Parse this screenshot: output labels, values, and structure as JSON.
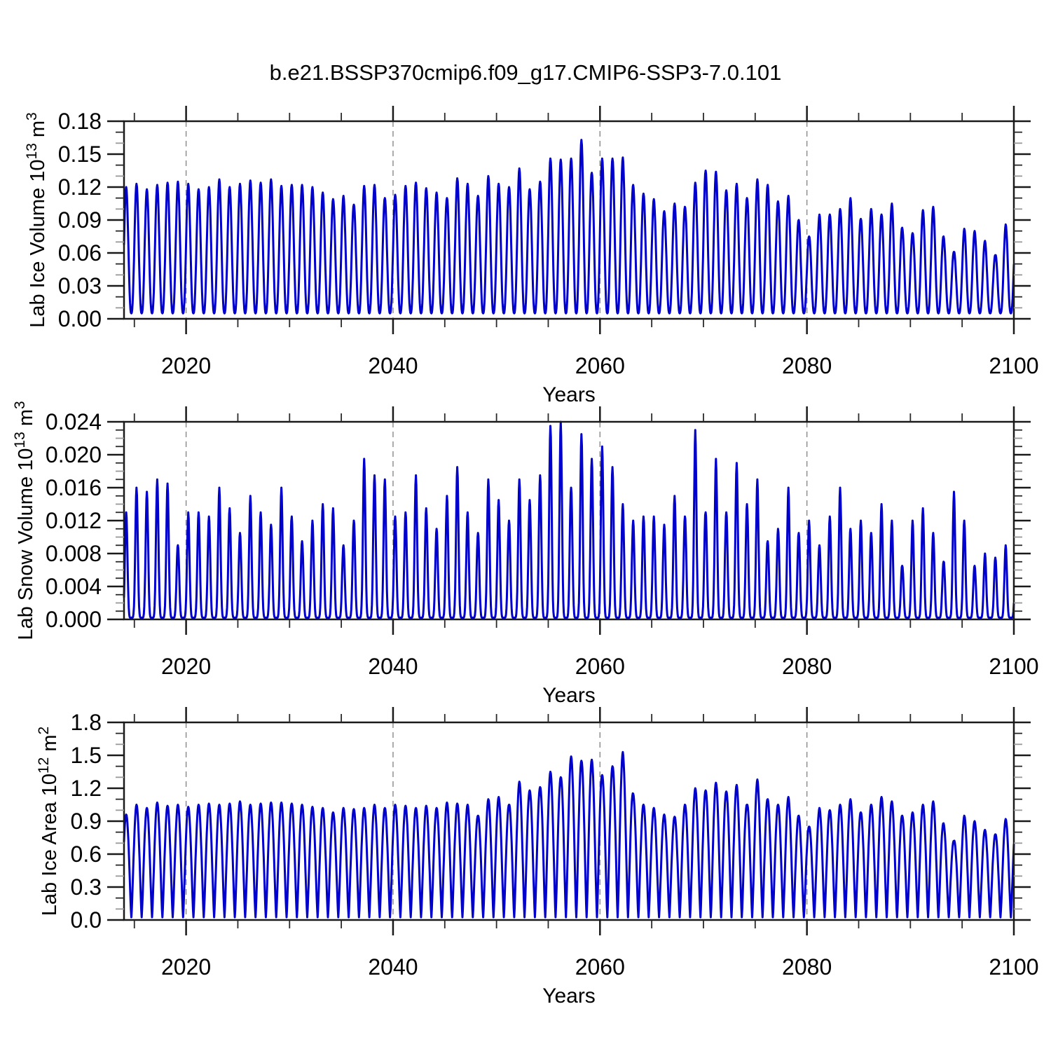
{
  "title": "b.e21.BSSP370cmip6.f09_g17.CMIP6-SSP3-7.0.101",
  "colors": {
    "line": "#0000CD",
    "frame": "#1a1a1a",
    "major_tick": "#1a1a1a",
    "minor_tick_dark": "#2a2a2a",
    "minor_tick_gray": "#999999",
    "grid": "#888888",
    "text": "#000000"
  },
  "chart_data": [
    {
      "type": "line",
      "id": "lab-ice-volume",
      "ylabel": {
        "text": "Lab Ice Volume",
        "base": "10",
        "base_exp": "13",
        "unit": "m",
        "unit_exp": "3"
      },
      "xlabel": "Years",
      "xlim": [
        2014,
        2100
      ],
      "ylim": [
        0,
        0.18
      ],
      "x_major_ticks": [
        2020,
        2040,
        2060,
        2080,
        2100
      ],
      "x_major_labels": [
        "2020",
        "2040",
        "2060",
        "2080",
        "2100"
      ],
      "x_minor_step": 5,
      "y_major_ticks": [
        0,
        0.03,
        0.06,
        0.09,
        0.12,
        0.15,
        0.18
      ],
      "y_major_labels": [
        "0.00",
        "0.03",
        "0.06",
        "0.09",
        "0.12",
        "0.15",
        "0.18"
      ],
      "y_minor_step": 0.01,
      "grid_x": [
        2020,
        2040,
        2060,
        2080
      ],
      "seasonal_min": 0.005,
      "seasonal_exponent": 1.3,
      "peak_month_frac": 0.2083,
      "annual_peak_start_year": 2014,
      "annual_peaks": [
        0.12,
        0.123,
        0.118,
        0.122,
        0.124,
        0.125,
        0.123,
        0.118,
        0.12,
        0.127,
        0.12,
        0.123,
        0.126,
        0.124,
        0.127,
        0.121,
        0.122,
        0.122,
        0.12,
        0.115,
        0.109,
        0.112,
        0.104,
        0.121,
        0.122,
        0.11,
        0.113,
        0.121,
        0.124,
        0.119,
        0.115,
        0.11,
        0.128,
        0.123,
        0.112,
        0.13,
        0.123,
        0.12,
        0.137,
        0.118,
        0.125,
        0.146,
        0.145,
        0.146,
        0.163,
        0.133,
        0.146,
        0.146,
        0.147,
        0.122,
        0.114,
        0.109,
        0.098,
        0.105,
        0.102,
        0.124,
        0.135,
        0.134,
        0.117,
        0.123,
        0.11,
        0.127,
        0.122,
        0.107,
        0.112,
        0.09,
        0.075,
        0.095,
        0.095,
        0.1,
        0.11,
        0.091,
        0.1,
        0.095,
        0.105,
        0.083,
        0.078,
        0.099,
        0.102,
        0.075,
        0.061,
        0.082,
        0.08,
        0.071,
        0.058,
        0.086
      ]
    },
    {
      "type": "line",
      "id": "lab-snow-volume",
      "ylabel": {
        "text": "Lab Snow Volume",
        "base": "10",
        "base_exp": "13",
        "unit": "m",
        "unit_exp": "3"
      },
      "xlabel": "Years",
      "xlim": [
        2014,
        2100
      ],
      "ylim": [
        0,
        0.024
      ],
      "x_major_ticks": [
        2020,
        2040,
        2060,
        2080,
        2100
      ],
      "x_major_labels": [
        "2020",
        "2040",
        "2060",
        "2080",
        "2100"
      ],
      "x_minor_step": 5,
      "y_major_ticks": [
        0,
        0.004,
        0.008,
        0.012,
        0.016,
        0.02,
        0.024
      ],
      "y_major_labels": [
        "0.000",
        "0.004",
        "0.008",
        "0.012",
        "0.016",
        "0.020",
        "0.024"
      ],
      "y_minor_step": 0.001,
      "grid_x": [
        2020,
        2040,
        2060,
        2080
      ],
      "seasonal_min": 0.0002,
      "seasonal_exponent": 3.5,
      "peak_month_frac": 0.2083,
      "annual_peak_start_year": 2014,
      "annual_peaks": [
        0.013,
        0.016,
        0.0155,
        0.017,
        0.0165,
        0.009,
        0.013,
        0.013,
        0.0125,
        0.016,
        0.0135,
        0.0105,
        0.015,
        0.013,
        0.0115,
        0.016,
        0.0125,
        0.0095,
        0.012,
        0.014,
        0.0135,
        0.009,
        0.012,
        0.0195,
        0.0175,
        0.017,
        0.0125,
        0.013,
        0.0175,
        0.0135,
        0.011,
        0.015,
        0.0185,
        0.013,
        0.0105,
        0.017,
        0.0145,
        0.012,
        0.017,
        0.0145,
        0.0175,
        0.0235,
        0.024,
        0.016,
        0.0225,
        0.0195,
        0.021,
        0.0185,
        0.014,
        0.012,
        0.0125,
        0.0125,
        0.0115,
        0.015,
        0.0125,
        0.023,
        0.013,
        0.0195,
        0.013,
        0.019,
        0.014,
        0.017,
        0.0095,
        0.011,
        0.016,
        0.0105,
        0.012,
        0.009,
        0.0125,
        0.016,
        0.011,
        0.012,
        0.0105,
        0.014,
        0.012,
        0.0065,
        0.012,
        0.0135,
        0.0105,
        0.007,
        0.0155,
        0.012,
        0.0065,
        0.008,
        0.0075,
        0.009
      ]
    },
    {
      "type": "line",
      "id": "lab-ice-area",
      "ylabel": {
        "text": "Lab Ice Area",
        "base": "10",
        "base_exp": "12",
        "unit": "m",
        "unit_exp": "2"
      },
      "xlabel": "Years",
      "xlim": [
        2014,
        2100
      ],
      "ylim": [
        0,
        1.8
      ],
      "x_major_ticks": [
        2020,
        2040,
        2060,
        2080,
        2100
      ],
      "x_major_labels": [
        "2020",
        "2040",
        "2060",
        "2080",
        "2100"
      ],
      "x_minor_step": 5,
      "y_major_ticks": [
        0,
        0.3,
        0.6,
        0.9,
        1.2,
        1.5,
        1.8
      ],
      "y_major_labels": [
        "0.0",
        "0.3",
        "0.6",
        "0.9",
        "1.2",
        "1.5",
        "1.8"
      ],
      "y_minor_step": 0.1,
      "grid_x": [
        2020,
        2040,
        2060,
        2080
      ],
      "seasonal_min": 0.025,
      "seasonal_exponent": 0.65,
      "peak_month_frac": 0.2083,
      "annual_peak_start_year": 2014,
      "annual_peaks": [
        0.96,
        1.05,
        1.02,
        1.07,
        1.04,
        1.05,
        1.03,
        1.05,
        1.06,
        1.05,
        1.06,
        1.08,
        1.05,
        1.06,
        1.07,
        1.07,
        1.06,
        1.05,
        1.03,
        1.02,
        0.98,
        1.02,
        1.01,
        1.02,
        1.05,
        1.02,
        1.05,
        1.04,
        1.02,
        1.04,
        1.02,
        1.07,
        1.06,
        1.05,
        0.95,
        1.1,
        1.12,
        1.05,
        1.26,
        1.18,
        1.21,
        1.35,
        1.3,
        1.49,
        1.45,
        1.46,
        1.32,
        1.4,
        1.53,
        1.15,
        1.05,
        1.02,
        0.96,
        0.94,
        1.05,
        1.2,
        1.18,
        1.25,
        1.17,
        1.23,
        1.05,
        1.28,
        1.1,
        1.05,
        1.12,
        0.95,
        0.85,
        1.02,
        1.0,
        1.05,
        1.1,
        0.98,
        1.05,
        1.12,
        1.08,
        0.95,
        0.98,
        1.05,
        1.08,
        0.88,
        0.72,
        0.95,
        0.9,
        0.82,
        0.78,
        0.92
      ]
    }
  ]
}
